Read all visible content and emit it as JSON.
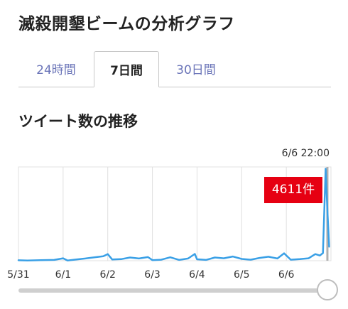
{
  "page": {
    "title": "滅殺開墾ビームの分析グラフ"
  },
  "tabs": [
    {
      "label": "24時間",
      "active": false
    },
    {
      "label": "7日間",
      "active": true
    },
    {
      "label": "30日間",
      "active": false
    }
  ],
  "section": {
    "title": "ツイート数の推移"
  },
  "chart": {
    "timestamp": "6/6 22:00",
    "count_label": "4611件"
  },
  "slider": {
    "value_fraction": 1.0
  },
  "colors": {
    "line": "#3aa0e6",
    "badge": "#e60012",
    "tab_text": "#6a74b8",
    "grid": "#e0e0e0"
  },
  "chart_data": {
    "type": "line",
    "xlabel": "",
    "ylabel": "",
    "x_ticks": [
      "5/31",
      "6/1",
      "6/2",
      "6/3",
      "6/4",
      "6/5",
      "6/6"
    ],
    "x_range_days": [
      0,
      7
    ],
    "ylim": [
      0,
      4700
    ],
    "grid": true,
    "series": [
      {
        "x": [
          0,
          0.2,
          0.5,
          0.8,
          1.0,
          1.1,
          1.3,
          1.5,
          1.7,
          1.9,
          2.0,
          2.1,
          2.3,
          2.5,
          2.7,
          2.9,
          3.0,
          3.2,
          3.4,
          3.6,
          3.8,
          3.95,
          4.0,
          4.2,
          4.4,
          4.6,
          4.8,
          5.0,
          5.2,
          5.4,
          5.6,
          5.8,
          5.95,
          6.1,
          6.3,
          6.5,
          6.65,
          6.75,
          6.82,
          6.88,
          6.92,
          6.96
        ],
        "y": [
          20,
          10,
          30,
          40,
          120,
          10,
          60,
          110,
          170,
          220,
          330,
          60,
          80,
          160,
          110,
          180,
          30,
          50,
          170,
          40,
          110,
          340,
          70,
          40,
          160,
          120,
          210,
          90,
          50,
          140,
          200,
          110,
          370,
          50,
          80,
          120,
          330,
          260,
          380,
          4611,
          2500,
          700
        ]
      }
    ]
  }
}
